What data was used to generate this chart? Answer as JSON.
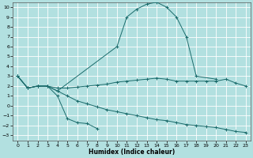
{
  "xlabel": "Humidex (Indice chaleur)",
  "bg_color": "#b2e0e0",
  "grid_color": "#ffffff",
  "line_color": "#1a6b6b",
  "xlim": [
    -0.5,
    23.5
  ],
  "ylim": [
    -3.5,
    10.5
  ],
  "xticks": [
    0,
    1,
    2,
    3,
    4,
    5,
    6,
    7,
    8,
    9,
    10,
    11,
    12,
    13,
    14,
    15,
    16,
    17,
    18,
    19,
    20,
    21,
    22,
    23
  ],
  "yticks": [
    -3,
    -2,
    -1,
    0,
    1,
    2,
    3,
    4,
    5,
    6,
    7,
    8,
    9,
    10
  ],
  "curve_peak_x": [
    0,
    1,
    2,
    3,
    4,
    10,
    11,
    12,
    13,
    14,
    15,
    16,
    17,
    18,
    20
  ],
  "curve_peak_y": [
    3.0,
    1.8,
    2.0,
    2.0,
    1.5,
    6.0,
    9.0,
    9.8,
    10.3,
    10.5,
    10.0,
    9.0,
    7.0,
    3.0,
    2.7
  ],
  "curve_flat_x": [
    0,
    1,
    2,
    3,
    4,
    5,
    6,
    7,
    8,
    9,
    10,
    11,
    12,
    13,
    14,
    15,
    16,
    17,
    18,
    19,
    20,
    21,
    22,
    23
  ],
  "curve_flat_y": [
    3.0,
    1.8,
    2.0,
    2.0,
    1.8,
    1.8,
    1.9,
    2.0,
    2.1,
    2.2,
    2.4,
    2.5,
    2.6,
    2.7,
    2.8,
    2.7,
    2.5,
    2.5,
    2.5,
    2.5,
    2.5,
    2.7,
    2.3,
    2.0
  ],
  "curve_low_left_x": [
    0,
    1,
    2,
    3,
    4,
    5,
    6,
    7,
    8
  ],
  "curve_low_left_y": [
    3.0,
    1.8,
    2.0,
    2.0,
    1.0,
    -1.3,
    -1.7,
    -1.8,
    -2.3
  ],
  "curve_low_right_x": [
    0,
    1,
    2,
    3,
    4,
    5,
    6,
    7,
    8,
    9,
    10,
    11,
    12,
    13,
    14,
    15,
    16,
    17,
    18,
    19,
    20,
    21,
    22,
    23
  ],
  "curve_low_right_y": [
    3.0,
    1.8,
    2.0,
    2.0,
    1.5,
    1.0,
    0.5,
    0.2,
    -0.1,
    -0.4,
    -0.6,
    -0.8,
    -1.0,
    -1.2,
    -1.4,
    -1.5,
    -1.7,
    -1.9,
    -2.0,
    -2.1,
    -2.2,
    -2.4,
    -2.6,
    -2.7
  ]
}
